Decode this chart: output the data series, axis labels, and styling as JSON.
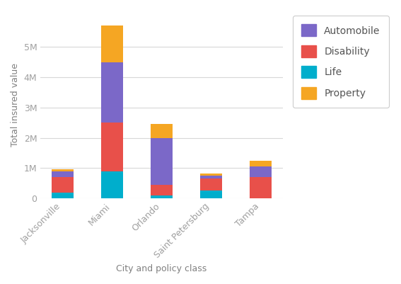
{
  "categories": [
    "Jacksonville",
    "Miami",
    "Orlando",
    "Saint Petersburg",
    "Tampa"
  ],
  "series": {
    "Life": [
      200000,
      900000,
      100000,
      250000,
      0
    ],
    "Disability": [
      500000,
      1600000,
      350000,
      400000,
      700000
    ],
    "Automobile": [
      200000,
      2000000,
      1550000,
      100000,
      350000
    ],
    "Property": [
      50000,
      1200000,
      450000,
      80000,
      200000
    ]
  },
  "colors": {
    "Life": "#00AECC",
    "Disability": "#E8504A",
    "Automobile": "#7B68C8",
    "Property": "#F5A623"
  },
  "stack_order": [
    "Life",
    "Disability",
    "Automobile",
    "Property"
  ],
  "legend_order": [
    "Automobile",
    "Disability",
    "Life",
    "Property"
  ],
  "ylabel": "Total insured value",
  "xlabel": "City and policy class",
  "yticks": [
    0,
    1000000,
    2000000,
    3000000,
    4000000,
    5000000
  ],
  "ytick_labels": [
    "0",
    "1M",
    "2M",
    "3M",
    "4M",
    "5M"
  ],
  "background_color": "#ffffff",
  "plot_bg_color": "#ffffff",
  "grid_color": "#d8d8d8",
  "tick_color": "#a0a0a0",
  "label_color": "#808080",
  "legend_font_color": "#555555",
  "legend_edge_color": "#cccccc"
}
